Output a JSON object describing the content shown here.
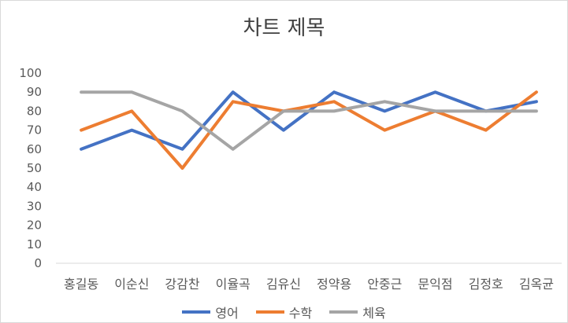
{
  "chart_data": {
    "type": "line",
    "title": "차트 제목",
    "categories": [
      "홍길동",
      "이순신",
      "강감찬",
      "이율곡",
      "김유신",
      "정약용",
      "안중근",
      "문익점",
      "김정호",
      "김옥균"
    ],
    "series": [
      {
        "name": "영어",
        "color": "#4472C4",
        "values": [
          60,
          70,
          60,
          90,
          70,
          90,
          80,
          90,
          80,
          85
        ]
      },
      {
        "name": "수학",
        "color": "#ED7D31",
        "values": [
          70,
          80,
          50,
          85,
          80,
          85,
          70,
          80,
          70,
          90
        ]
      },
      {
        "name": "체육",
        "color": "#A5A5A5",
        "values": [
          90,
          90,
          80,
          60,
          80,
          80,
          85,
          80,
          80,
          80
        ]
      }
    ],
    "ylim": [
      0,
      100
    ],
    "yticks": [
      "0",
      "10",
      "20",
      "30",
      "40",
      "50",
      "60",
      "70",
      "80",
      "90",
      "100"
    ],
    "grid": false,
    "legend_position": "bottom"
  }
}
